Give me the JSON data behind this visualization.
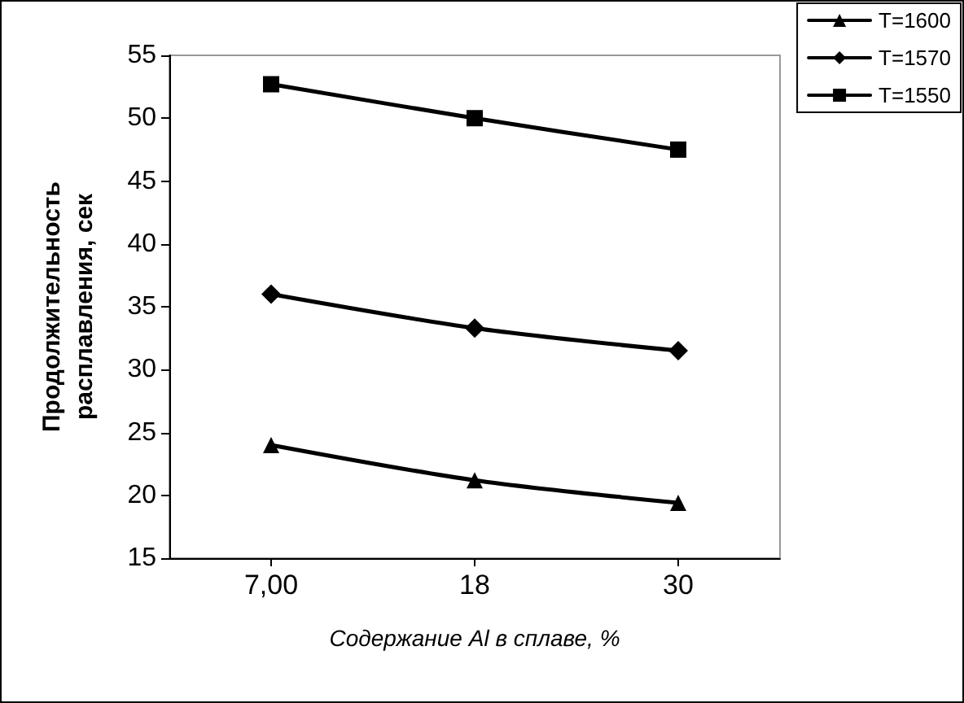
{
  "chart_data": {
    "type": "line",
    "xlabel": "Содержание Al в сплаве, %",
    "ylabel": "Продолжительность\nрасплавления, сек",
    "categories": [
      "7,00",
      "18",
      "30"
    ],
    "series": [
      {
        "name": "T=1600",
        "color": "#000000",
        "marker": "triangle",
        "values": [
          24,
          21.2,
          19.4
        ]
      },
      {
        "name": "T=1570",
        "color": "#000000",
        "marker": "diamond",
        "values": [
          36,
          33.3,
          31.5
        ]
      },
      {
        "name": "T=1550",
        "color": "#000000",
        "marker": "square",
        "values": [
          52.7,
          50,
          47.5
        ]
      }
    ],
    "ylim": [
      15,
      55
    ],
    "yticks": [
      15,
      20,
      25,
      30,
      35,
      40,
      45,
      50,
      55
    ],
    "grid": false,
    "legend": "top right",
    "line_style": "solid"
  }
}
